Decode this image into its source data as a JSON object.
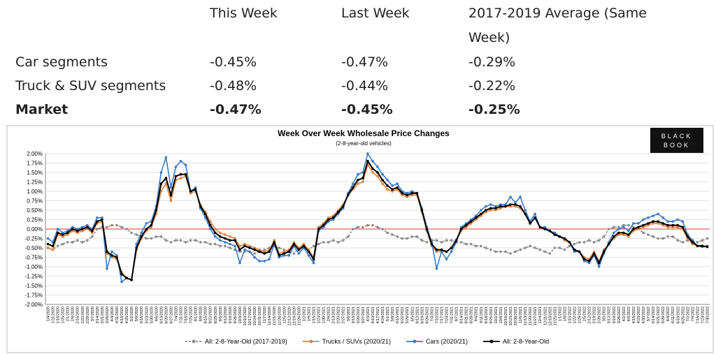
{
  "table": {
    "columns": [
      "This Week",
      "Last Week",
      "2017-2019 Average (Same Week)"
    ],
    "rows": [
      {
        "label": "Car segments",
        "values": [
          "-0.45%",
          "-0.47%",
          "-0.29%"
        ]
      },
      {
        "label": "Truck & SUV segments",
        "values": [
          "-0.48%",
          "-0.44%",
          "-0.22%"
        ]
      },
      {
        "label": "Market",
        "values": [
          "-0.47%",
          "-0.45%",
          "-0.25%"
        ]
      }
    ]
  },
  "logo": [
    "BLACK",
    "BOOK"
  ],
  "chart_data": {
    "type": "line",
    "title": "Week Over Week Wholesale Price Changes",
    "subtitle": "(2-8-year-old vehicles)",
    "x": [
      "1/4/2020",
      "1/11/2020",
      "1/18/2020",
      "1/25/2020",
      "2/1/2020",
      "2/8/2020",
      "2/15/2020",
      "2/22/2020",
      "2/29/2020",
      "3/7/2020",
      "3/14/2020",
      "3/21/2020",
      "3/28/2020",
      "4/4/2020",
      "4/11/2020",
      "4/18/2020",
      "4/25/2020",
      "5/2/2020",
      "5/9/2020",
      "5/16/2020",
      "5/23/2020",
      "5/30/2020",
      "6/6/2020",
      "6/13/2020",
      "6/20/2020",
      "6/27/2020",
      "7/4/2020",
      "7/11/2020",
      "7/18/2020",
      "7/25/2020",
      "8/1/2020",
      "8/8/2020",
      "8/15/2020",
      "8/22/2020",
      "8/29/2020",
      "9/5/2020",
      "9/12/2020",
      "9/19/2020",
      "9/26/2020",
      "10/3/2020",
      "10/10/2020",
      "10/17/2020",
      "10/24/2020",
      "10/31/2020",
      "11/7/2020",
      "11/14/2020",
      "11/21/2020",
      "11/28/2020",
      "12/5/2020",
      "12/12/2020",
      "12/19/2020",
      "12/26/2020",
      "1/2/2021",
      "1/9/2021",
      "1/16/2021",
      "1/23/2021",
      "1/30/2021",
      "2/6/2021",
      "2/13/2021",
      "2/20/2021",
      "2/27/2021",
      "3/6/2021",
      "3/13/2021",
      "3/20/2021",
      "3/27/2021",
      "4/3/2021",
      "4/10/2021",
      "4/17/2021",
      "4/24/2021",
      "5/1/2021",
      "5/8/2021",
      "5/15/2021",
      "5/22/2021",
      "5/29/2021",
      "6/5/2021",
      "6/12/2021",
      "6/19/2021",
      "6/26/2021",
      "7/3/2021",
      "7/10/2021",
      "7/17/2021",
      "7/24/2021",
      "7/31/2021",
      "8/7/2021",
      "8/14/2021",
      "8/21/2021",
      "8/28/2021",
      "9/4/2021",
      "9/11/2021",
      "9/18/2021",
      "9/25/2021",
      "10/2/2021",
      "10/9/2021",
      "10/16/2021",
      "10/23/2021",
      "10/30/2021",
      "11/6/2021",
      "11/13/2021",
      "11/20/2021",
      "11/27/2021",
      "12/4/2021",
      "12/11/2021",
      "12/18/2021",
      "12/25/2021",
      "1/1/2022",
      "1/8/2022",
      "1/15/2022",
      "1/22/2022",
      "1/29/2022",
      "2/5/2022",
      "2/12/2022",
      "2/19/2022",
      "2/26/2022",
      "3/5/2022",
      "3/12/2022",
      "3/19/2022",
      "3/26/2022",
      "4/2/2022",
      "4/9/2022",
      "4/16/2022",
      "4/23/2022",
      "4/30/2022",
      "5/7/2022",
      "5/14/2022",
      "5/21/2022",
      "5/28/2022",
      "6/4/2022",
      "6/11/2022",
      "6/18/2022",
      "6/25/2022",
      "7/2/2022",
      "7/9/2022",
      "7/16/2022",
      "7/23/2022",
      "7/30/2022"
    ],
    "series": [
      {
        "name": "All: 2-8-Year-Old (2017-2019)",
        "color": "#8c8c8c",
        "values": [
          -0.5,
          -0.55,
          -0.45,
          -0.4,
          -0.35,
          -0.35,
          -0.3,
          -0.35,
          -0.3,
          -0.2,
          0.0,
          0.05,
          0.05,
          0.1,
          0.1,
          0.05,
          0.0,
          -0.1,
          -0.15,
          -0.2,
          -0.25,
          -0.25,
          -0.2,
          -0.2,
          -0.3,
          -0.35,
          -0.3,
          -0.3,
          -0.35,
          -0.3,
          -0.3,
          -0.35,
          -0.35,
          -0.4,
          -0.4,
          -0.45,
          -0.45,
          -0.5,
          -0.55,
          -0.6,
          -0.6,
          -0.6,
          -0.65,
          -0.6,
          -0.55,
          -0.5,
          -0.45,
          -0.5,
          -0.55,
          -0.6,
          -0.65,
          -0.5,
          -0.5,
          -0.55,
          -0.45,
          -0.4,
          -0.35,
          -0.35,
          -0.3,
          -0.35,
          -0.3,
          -0.2,
          0.0,
          0.05,
          0.05,
          0.1,
          0.1,
          0.05,
          0.0,
          -0.1,
          -0.15,
          -0.2,
          -0.25,
          -0.25,
          -0.2,
          -0.2,
          -0.3,
          -0.35,
          -0.3,
          -0.3,
          -0.35,
          -0.3,
          -0.3,
          -0.35,
          -0.35,
          -0.4,
          -0.4,
          -0.45,
          -0.45,
          -0.5,
          -0.55,
          -0.6,
          -0.6,
          -0.6,
          -0.65,
          -0.6,
          -0.55,
          -0.5,
          -0.45,
          -0.5,
          -0.55,
          -0.6,
          -0.65,
          -0.5,
          -0.5,
          -0.55,
          -0.45,
          -0.4,
          -0.35,
          -0.35,
          -0.3,
          -0.35,
          -0.3,
          -0.2,
          0.0,
          0.05,
          0.05,
          0.1,
          0.1,
          0.05,
          0.0,
          -0.1,
          -0.15,
          -0.2,
          -0.25,
          -0.25,
          -0.2,
          -0.2,
          -0.3,
          -0.35,
          -0.3,
          -0.3,
          -0.35,
          -0.3,
          -0.25
        ]
      },
      {
        "name": "Trucks / SUVs (2020/21)",
        "color": "#e0843c",
        "values": [
          -0.5,
          -0.55,
          -0.15,
          -0.2,
          -0.15,
          -0.05,
          -0.1,
          -0.05,
          0.0,
          -0.1,
          0.15,
          0.2,
          -0.65,
          -0.75,
          -0.8,
          -1.15,
          -1.3,
          -1.35,
          -0.55,
          -0.25,
          -0.05,
          0.05,
          0.4,
          1.0,
          1.2,
          0.75,
          1.3,
          1.35,
          1.4,
          0.95,
          1.0,
          0.65,
          0.45,
          0.2,
          0.0,
          -0.1,
          -0.15,
          -0.2,
          -0.25,
          -0.45,
          -0.4,
          -0.45,
          -0.5,
          -0.55,
          -0.6,
          -0.55,
          -0.3,
          -0.65,
          -0.6,
          -0.55,
          -0.35,
          -0.5,
          -0.4,
          -0.55,
          -0.75,
          0.05,
          0.15,
          0.3,
          0.35,
          0.5,
          0.65,
          0.9,
          1.05,
          1.2,
          1.25,
          1.7,
          1.5,
          1.4,
          1.2,
          1.05,
          1.0,
          1.05,
          0.9,
          0.85,
          0.9,
          0.9,
          0.45,
          -0.05,
          -0.45,
          -0.6,
          -0.6,
          -0.6,
          -0.5,
          -0.3,
          -0.05,
          0.05,
          0.15,
          0.25,
          0.35,
          0.45,
          0.5,
          0.5,
          0.55,
          0.6,
          0.6,
          0.6,
          0.55,
          0.4,
          0.15,
          0.3,
          0.05,
          0.0,
          -0.05,
          -0.15,
          -0.2,
          -0.3,
          -0.35,
          -0.55,
          -0.6,
          -0.75,
          -0.8,
          -0.6,
          -0.85,
          -0.55,
          -0.4,
          -0.25,
          -0.15,
          -0.15,
          -0.2,
          -0.05,
          0.0,
          0.05,
          0.1,
          0.15,
          0.15,
          0.1,
          0.05,
          0.05,
          0.05,
          0.0,
          -0.25,
          -0.4,
          -0.44,
          -0.44,
          -0.48
        ]
      },
      {
        "name": "Cars (2020/21)",
        "color": "#3a7cc9",
        "values": [
          -0.25,
          -0.35,
          0.0,
          -0.1,
          -0.05,
          0.05,
          0.0,
          0.05,
          0.1,
          0.0,
          0.3,
          0.3,
          -1.05,
          -0.6,
          -0.7,
          -1.4,
          -1.3,
          -1.35,
          -0.4,
          -0.1,
          0.15,
          0.2,
          0.6,
          1.5,
          1.9,
          1.1,
          1.65,
          1.8,
          1.7,
          1.0,
          1.1,
          0.55,
          0.3,
          0.0,
          -0.2,
          -0.3,
          -0.35,
          -0.4,
          -0.45,
          -0.9,
          -0.55,
          -0.6,
          -0.75,
          -0.85,
          -0.85,
          -0.8,
          -0.4,
          -0.75,
          -0.7,
          -0.7,
          -0.45,
          -0.65,
          -0.5,
          -0.7,
          -0.9,
          -0.05,
          0.05,
          0.2,
          0.25,
          0.4,
          0.55,
          0.95,
          1.2,
          1.45,
          1.5,
          2.0,
          1.8,
          1.65,
          1.45,
          1.3,
          1.15,
          1.2,
          1.0,
          0.95,
          1.0,
          0.95,
          0.55,
          0.05,
          -0.35,
          -1.05,
          -0.6,
          -0.8,
          -0.6,
          -0.35,
          0.05,
          0.15,
          0.25,
          0.35,
          0.5,
          0.6,
          0.65,
          0.6,
          0.65,
          0.65,
          0.85,
          0.7,
          0.85,
          0.5,
          0.2,
          0.4,
          0.05,
          0.05,
          -0.05,
          -0.1,
          -0.2,
          -0.25,
          -0.35,
          -0.6,
          -0.6,
          -0.85,
          -0.9,
          -0.7,
          -1.0,
          -0.65,
          -0.35,
          -0.1,
          0.0,
          0.05,
          -0.05,
          0.15,
          0.15,
          0.25,
          0.3,
          0.35,
          0.4,
          0.3,
          0.2,
          0.2,
          0.25,
          0.2,
          -0.15,
          -0.3,
          -0.45,
          -0.47,
          -0.45
        ]
      },
      {
        "name": "All: 2-8-Year-Old",
        "color": "#000000",
        "values": [
          -0.4,
          -0.45,
          -0.1,
          -0.15,
          -0.1,
          0.0,
          -0.05,
          0.0,
          0.05,
          -0.05,
          0.2,
          0.25,
          -0.6,
          -0.7,
          -0.75,
          -1.2,
          -1.3,
          -1.35,
          -0.5,
          -0.2,
          0.0,
          0.1,
          0.5,
          1.2,
          1.35,
          0.9,
          1.4,
          1.45,
          1.45,
          1.0,
          1.05,
          0.6,
          0.4,
          0.1,
          -0.1,
          -0.2,
          -0.25,
          -0.3,
          -0.3,
          -0.55,
          -0.45,
          -0.5,
          -0.55,
          -0.6,
          -0.65,
          -0.6,
          -0.35,
          -0.7,
          -0.65,
          -0.6,
          -0.4,
          -0.55,
          -0.45,
          -0.6,
          -0.8,
          0.0,
          0.1,
          0.25,
          0.3,
          0.45,
          0.6,
          0.9,
          1.1,
          1.3,
          1.35,
          1.8,
          1.6,
          1.5,
          1.3,
          1.15,
          1.05,
          1.1,
          0.95,
          0.9,
          0.95,
          0.95,
          0.5,
          0.0,
          -0.4,
          -0.55,
          -0.55,
          -0.6,
          -0.5,
          -0.3,
          0.0,
          0.1,
          0.2,
          0.3,
          0.4,
          0.5,
          0.55,
          0.55,
          0.6,
          0.6,
          0.65,
          0.65,
          0.6,
          0.4,
          0.15,
          0.3,
          0.05,
          0.0,
          -0.05,
          -0.15,
          -0.2,
          -0.25,
          -0.35,
          -0.55,
          -0.6,
          -0.8,
          -0.85,
          -0.65,
          -0.9,
          -0.6,
          -0.4,
          -0.2,
          -0.1,
          -0.1,
          -0.15,
          0.0,
          0.05,
          0.1,
          0.15,
          0.2,
          0.2,
          0.15,
          0.1,
          0.1,
          0.1,
          0.05,
          -0.2,
          -0.35,
          -0.45,
          -0.45,
          -0.47
        ]
      }
    ],
    "ylim": [
      -2,
      2
    ],
    "yticks": [
      {
        "value": -2,
        "label": "-2.00%"
      },
      {
        "value": -1.75,
        "label": "-1.75%"
      },
      {
        "value": -1.5,
        "label": "-1.50%"
      },
      {
        "value": -1.25,
        "label": "-1.25%"
      },
      {
        "value": -1,
        "label": "-1.00%"
      },
      {
        "value": -0.75,
        "label": "-0.75%"
      },
      {
        "value": -0.5,
        "label": "-0.50%"
      },
      {
        "value": -0.25,
        "label": "-0.25%"
      },
      {
        "value": 0,
        "label": "0.00%"
      },
      {
        "value": 0.25,
        "label": "0.25%"
      },
      {
        "value": 0.5,
        "label": "0.50%"
      },
      {
        "value": 0.75,
        "label": "0.75%"
      },
      {
        "value": 1,
        "label": "1.00%"
      },
      {
        "value": 1.25,
        "label": "1.25%"
      },
      {
        "value": 1.5,
        "label": "1.50%"
      },
      {
        "value": 1.75,
        "label": "1.75%"
      },
      {
        "value": 2,
        "label": "2.00%"
      }
    ],
    "grid": true,
    "zero_line_color": "#e03030",
    "legend": "bottom"
  }
}
